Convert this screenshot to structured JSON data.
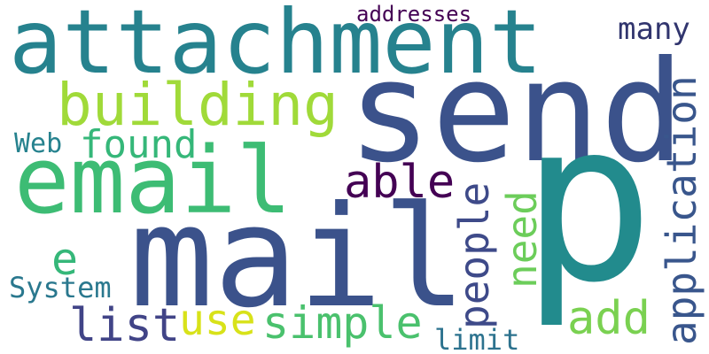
{
  "words": [
    {
      "text": "attachment",
      "color": "#26828e"
    },
    {
      "text": "send",
      "color": "#3b528b"
    },
    {
      "text": "p",
      "color": "#228b8d"
    },
    {
      "text": "email",
      "color": "#3dbc74"
    },
    {
      "text": "mail",
      "color": "#3b528b"
    },
    {
      "text": "building",
      "color": "#a0da39"
    },
    {
      "text": "addresses",
      "color": "#440154"
    },
    {
      "text": "many",
      "color": "#31356e"
    },
    {
      "text": "application",
      "color": "#39568c"
    },
    {
      "text": "found",
      "color": "#35b779"
    },
    {
      "text": "Web",
      "color": "#26828e"
    },
    {
      "text": "able",
      "color": "#440154"
    },
    {
      "text": "people",
      "color": "#3e4a89"
    },
    {
      "text": "need",
      "color": "#6ccd5a"
    },
    {
      "text": "e",
      "color": "#35b779"
    },
    {
      "text": "System",
      "color": "#2a788e"
    },
    {
      "text": "list",
      "color": "#414487"
    },
    {
      "text": "use",
      "color": "#d8e219"
    },
    {
      "text": "simple",
      "color": "#4ac16d"
    },
    {
      "text": "add",
      "color": "#7ad151"
    },
    {
      "text": "limit",
      "color": "#2c728e"
    }
  ]
}
